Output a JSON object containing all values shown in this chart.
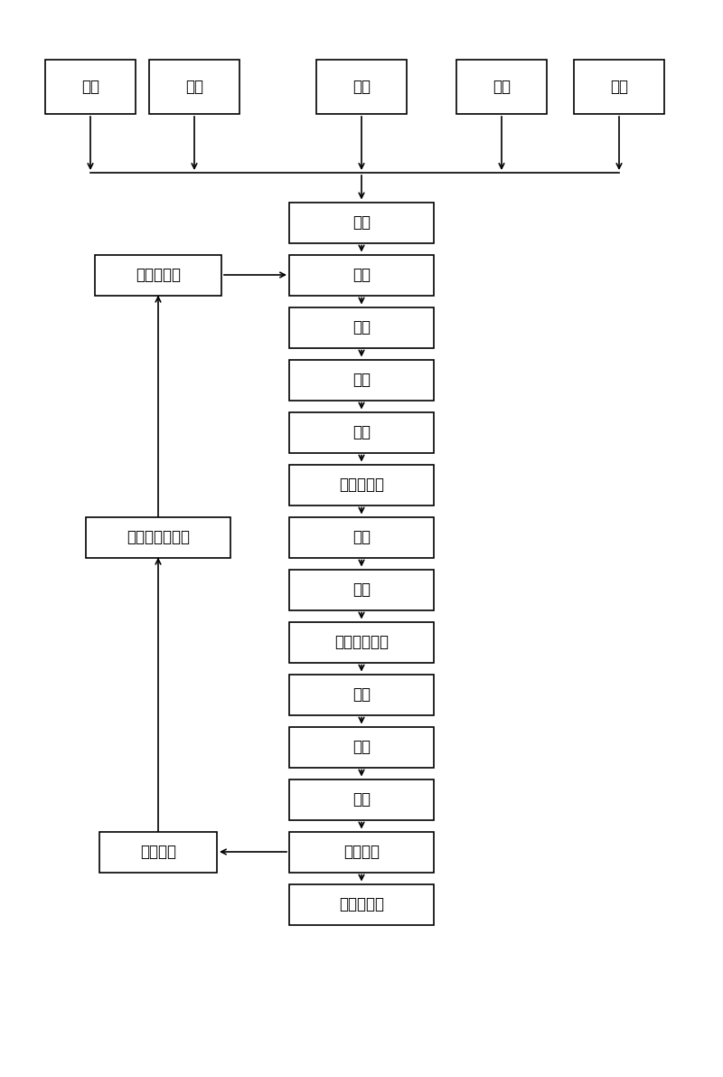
{
  "background_color": "#ffffff",
  "fig_width": 8.0,
  "fig_height": 11.91,
  "font_size": 12,
  "box_color": "#ffffff",
  "box_edge_color": "#000000",
  "text_color": "#000000",
  "main_flow": [
    "搞拌",
    "浇注",
    "预养",
    "翻转",
    "脱模",
    "纵切两侧面",
    "纵切",
    "横切",
    "吸至蠹养小车",
    "入釜",
    "蠹养",
    "出釜",
    "成品堆垣",
    "包装、装车"
  ],
  "top_boxes": [
    "配料",
    "配料",
    "配料",
    "配料",
    "配料"
  ],
  "left_box_1": "清理、喷油",
  "left_box_2": "与脱模空模重组",
  "left_box_3": "侧板返回",
  "arrow_color": "#000000",
  "lw": 1.2
}
